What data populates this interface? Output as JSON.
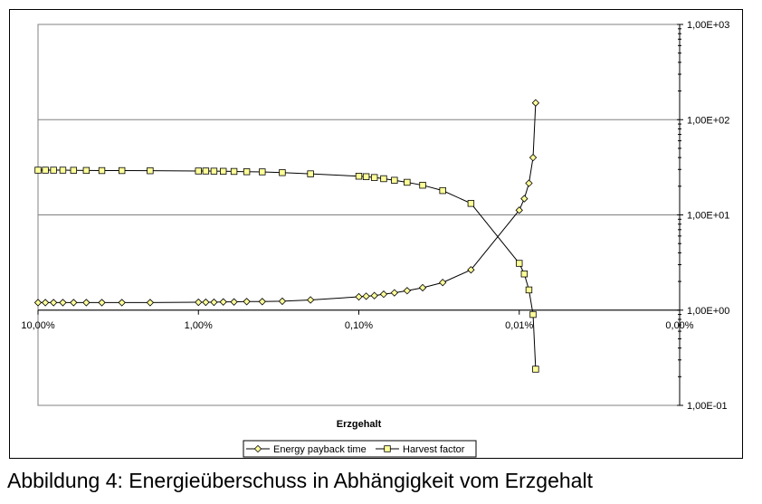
{
  "caption": "Abbildung 4: Energieüberschuss in Abhängigkeit vom Erzgehalt",
  "colors": {
    "marker_fill": "#ffff99",
    "line": "#000000",
    "grid": "#808080"
  },
  "chart_data": {
    "type": "line",
    "title": "",
    "xlabel": "Erzgehalt",
    "ylabel": "",
    "x_scale": "log-reversed",
    "y_scale": "log",
    "xlim": [
      10,
      0.001
    ],
    "ylim": [
      0.1,
      1000
    ],
    "x_ticks": [
      10,
      1,
      0.1,
      0.01,
      0.001
    ],
    "x_tick_labels": [
      "10,00%",
      "1,00%",
      "0,10%",
      "0,01%",
      "0,00%"
    ],
    "y_ticks": [
      0.1,
      1,
      10,
      100,
      1000
    ],
    "y_tick_labels": [
      "1,00E-01",
      "1,00E+00",
      "1,00E+01",
      "1,00E+02",
      "1,00E+03"
    ],
    "y_axis_side": "right",
    "grid": "horizontal",
    "legend_position": "bottom-center",
    "series": [
      {
        "name": "Energy payback time",
        "marker": "diamond",
        "x": [
          10,
          9,
          8,
          7,
          6,
          5,
          4,
          3,
          2,
          1,
          0.9,
          0.8,
          0.7,
          0.6,
          0.5,
          0.4,
          0.3,
          0.2,
          0.1,
          0.09,
          0.08,
          0.07,
          0.06,
          0.05,
          0.04,
          0.03,
          0.02,
          0.01,
          0.0093,
          0.0087,
          0.0082,
          0.0079
        ],
        "y": [
          1.2,
          1.2,
          1.2,
          1.2,
          1.2,
          1.2,
          1.2,
          1.2,
          1.2,
          1.21,
          1.21,
          1.21,
          1.22,
          1.22,
          1.23,
          1.23,
          1.24,
          1.28,
          1.38,
          1.4,
          1.42,
          1.47,
          1.52,
          1.6,
          1.72,
          1.95,
          2.65,
          11.2,
          14.8,
          21.5,
          40,
          150
        ]
      },
      {
        "name": "Harvest factor",
        "marker": "square",
        "x": [
          10,
          9,
          8,
          7,
          6,
          5,
          4,
          3,
          2,
          1,
          0.9,
          0.8,
          0.7,
          0.6,
          0.5,
          0.4,
          0.3,
          0.2,
          0.1,
          0.09,
          0.08,
          0.07,
          0.06,
          0.05,
          0.04,
          0.03,
          0.02,
          0.01,
          0.0093,
          0.0087,
          0.0082,
          0.0079
        ],
        "y": [
          29.5,
          29.5,
          29.5,
          29.5,
          29.4,
          29.3,
          29.2,
          29.2,
          29.1,
          28.9,
          28.9,
          28.8,
          28.7,
          28.6,
          28.4,
          28.3,
          27.8,
          27.0,
          25.5,
          25.2,
          24.7,
          24.0,
          23.1,
          22.0,
          20.5,
          18.0,
          13.2,
          3.1,
          2.4,
          1.63,
          0.9,
          0.24
        ]
      }
    ]
  }
}
